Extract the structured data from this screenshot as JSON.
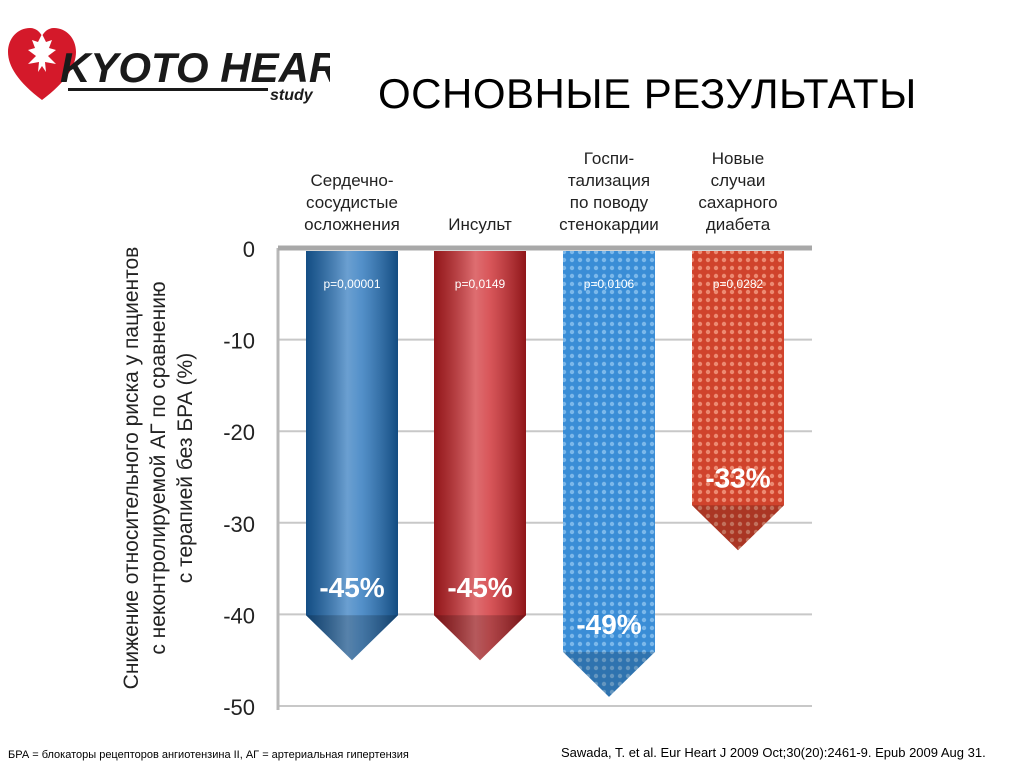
{
  "logo": {
    "name": "KYOTO HEART",
    "sub": "study"
  },
  "title": "ОСНОВНЫЕ РЕЗУЛЬТАТЫ",
  "footnote": "БРА = блокаторы рецепторов ангиотензина II, АГ = артериальная гипертензия",
  "citation": "Sawada, T. et al. Eur Heart J 2009 Oct;30(20):2461-9. Epub 2009 Aug 31.",
  "chart_data": {
    "type": "bar",
    "ylabel_lines": [
      "Снижение относительного риска у пациентов",
      "с неконтролируемой АГ по сравнению",
      "с терапией без БРА (%)"
    ],
    "ylim": [
      -50,
      0
    ],
    "yticks": [
      0,
      -10,
      -20,
      -30,
      -40,
      -50
    ],
    "grid": true,
    "categories": [
      [
        "Сердечно-",
        "сосудистые",
        "осложнения"
      ],
      [
        "Инсульт"
      ],
      [
        "Госпи-",
        "тализация",
        "по поводу",
        "стенокардии"
      ],
      [
        "Новые",
        "случаи",
        "сахарного",
        "диабета"
      ]
    ],
    "values": [
      -45,
      -45,
      -49,
      -33
    ],
    "value_labels": [
      "-45%",
      "-45%",
      "-49%",
      "-33%"
    ],
    "p_values": [
      "p=0,00001",
      "p=0,0149",
      "p=0,0106",
      "p=0,0282"
    ],
    "colors": [
      "#1b6cb8",
      "#cc1f24",
      "#3d8fd6",
      "#d2452c"
    ],
    "textured": [
      false,
      false,
      true,
      true
    ]
  }
}
